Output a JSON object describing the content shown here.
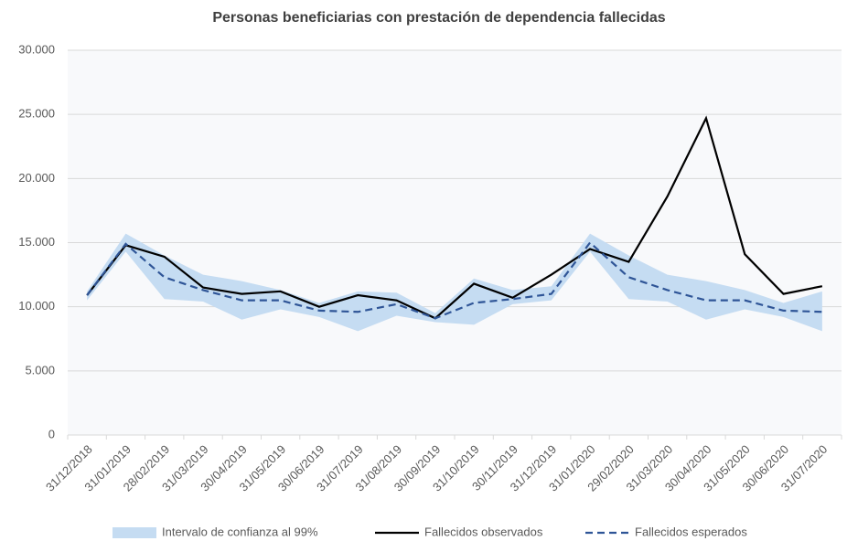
{
  "chart_data": {
    "type": "line",
    "title": "Personas beneficiarias con prestación de dependencia fallecidas",
    "categories": [
      "31/12/2018",
      "31/01/2019",
      "28/02/2019",
      "31/03/2019",
      "30/04/2019",
      "31/05/2019",
      "30/06/2019",
      "31/07/2019",
      "31/08/2019",
      "30/09/2019",
      "31/10/2019",
      "30/11/2019",
      "31/12/2019",
      "31/01/2020",
      "29/02/2020",
      "31/03/2020",
      "30/04/2020",
      "31/05/2020",
      "30/06/2020",
      "31/07/2020"
    ],
    "series": [
      {
        "name": "Intervalo de confianza al 99%",
        "color": "#c5dcf2",
        "values": [
          11200,
          15700,
          14000,
          12500,
          12000,
          11300,
          10300,
          11200,
          11100,
          9500,
          12200,
          11300,
          11600,
          15700,
          14000,
          12500,
          12000,
          11300,
          10300,
          11200
        ],
        "lower": [
          10500,
          14300,
          10600,
          10400,
          9000,
          9800,
          9200,
          8100,
          9300,
          8800,
          8600,
          10200,
          10500,
          14300,
          10600,
          10400,
          9000,
          9800,
          9200,
          8100
        ]
      },
      {
        "name": "Fallecidos observados",
        "color": "#000000",
        "values": [
          10900,
          14800,
          13900,
          11500,
          11000,
          11200,
          10000,
          10900,
          10500,
          9100,
          11800,
          10700,
          12500,
          14500,
          13500,
          18600,
          24700,
          14100,
          11000,
          11600
        ]
      },
      {
        "name": "Fallecidos esperados",
        "color": "#2f5597",
        "dash": true,
        "values": [
          10900,
          14900,
          12300,
          11300,
          10500,
          10500,
          9700,
          9600,
          10200,
          9100,
          10300,
          10600,
          11000,
          15000,
          12300,
          11300,
          10500,
          10500,
          9700,
          9600
        ]
      }
    ],
    "ylim": [
      0,
      30000
    ],
    "yticks": [
      0,
      {
        "value": 5000,
        "label": "5.000"
      },
      {
        "value": 10000,
        "label": "10.000"
      },
      {
        "value": 15000,
        "label": "15.000"
      },
      {
        "value": 20000,
        "label": "20.000"
      },
      {
        "value": 25000,
        "label": "25.000"
      },
      {
        "value": 30000,
        "label": "30.000"
      }
    ],
    "grid": true,
    "legend": "bottom"
  }
}
